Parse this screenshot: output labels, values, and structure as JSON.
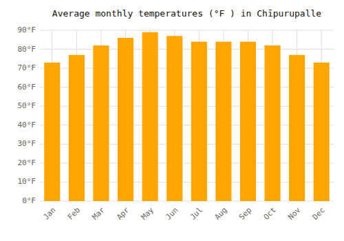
{
  "chart_data": {
    "type": "bar",
    "title": "Average monthly temperatures (°F ) in Chīpurupalle",
    "categories": [
      "Jan",
      "Feb",
      "Mar",
      "Apr",
      "May",
      "Jun",
      "Jul",
      "Aug",
      "Sep",
      "Oct",
      "Nov",
      "Dec"
    ],
    "values": [
      73,
      77,
      82,
      86,
      89,
      87,
      84,
      84,
      84,
      82,
      77,
      73
    ],
    "color": "#FFA500",
    "ylim": [
      0,
      90
    ],
    "yticks": [
      {
        "value": 0,
        "label": "0°F"
      },
      {
        "value": 10,
        "label": "10°F"
      },
      {
        "value": 20,
        "label": "20°F"
      },
      {
        "value": 30,
        "label": "30°F"
      },
      {
        "value": 40,
        "label": "40°F"
      },
      {
        "value": 50,
        "label": "50°F"
      },
      {
        "value": 60,
        "label": "60°F"
      },
      {
        "value": 70,
        "label": "70°F"
      },
      {
        "value": 80,
        "label": "80°F"
      },
      {
        "value": 90,
        "label": "90°F"
      }
    ],
    "grid": true
  }
}
